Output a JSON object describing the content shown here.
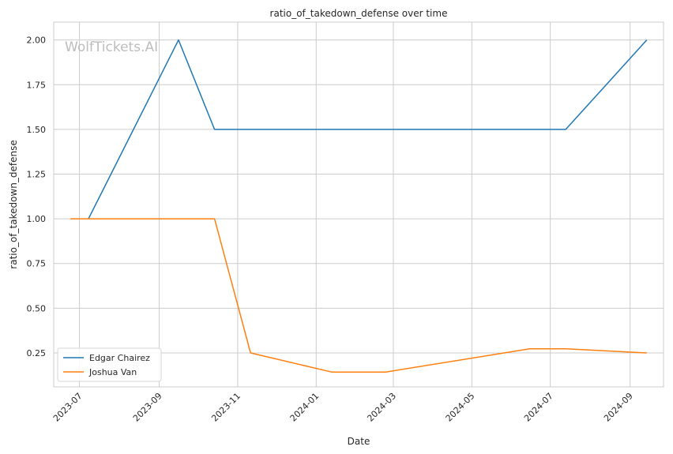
{
  "chart_data": {
    "type": "line",
    "title": "ratio_of_takedown_defense over time",
    "xlabel": "Date",
    "ylabel": "ratio_of_takedown_defense",
    "watermark": "WolfTickets.AI",
    "xlim": [
      "2023-06-11",
      "2024-09-27"
    ],
    "ylim": [
      0.06,
      2.1
    ],
    "x_ticks": [
      "2023-07",
      "2023-09",
      "2023-11",
      "2024-01",
      "2024-03",
      "2024-05",
      "2024-07",
      "2024-09"
    ],
    "y_ticks": [
      0.25,
      0.5,
      0.75,
      1.0,
      1.25,
      1.5,
      1.75,
      2.0
    ],
    "grid": true,
    "legend_position": "lower-left",
    "series": [
      {
        "name": "Edgar Chairez",
        "color": "#1f77b4",
        "points": [
          {
            "x": "2023-07-08",
            "y": 1.0
          },
          {
            "x": "2023-09-16",
            "y": 2.0
          },
          {
            "x": "2023-10-14",
            "y": 1.5
          },
          {
            "x": "2024-07-13",
            "y": 1.5
          },
          {
            "x": "2024-09-14",
            "y": 2.0
          }
        ]
      },
      {
        "name": "Joshua Van",
        "color": "#ff7f0e",
        "points": [
          {
            "x": "2023-06-24",
            "y": 1.0
          },
          {
            "x": "2023-10-14",
            "y": 1.0
          },
          {
            "x": "2023-11-11",
            "y": 0.25
          },
          {
            "x": "2024-01-13",
            "y": 0.143
          },
          {
            "x": "2024-02-24",
            "y": 0.143
          },
          {
            "x": "2024-06-15",
            "y": 0.273
          },
          {
            "x": "2024-07-13",
            "y": 0.273
          },
          {
            "x": "2024-09-14",
            "y": 0.25
          }
        ]
      }
    ]
  }
}
